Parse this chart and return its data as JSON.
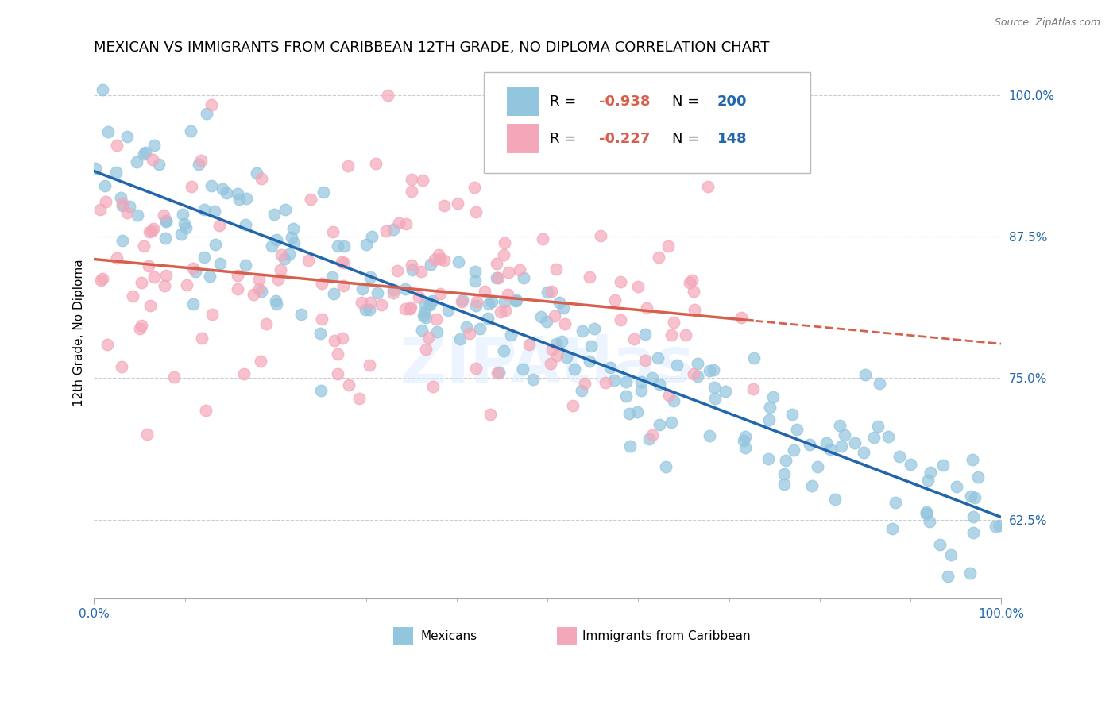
{
  "title": "MEXICAN VS IMMIGRANTS FROM CARIBBEAN 12TH GRADE, NO DIPLOMA CORRELATION CHART",
  "source": "Source: ZipAtlas.com",
  "ylabel": "12th Grade, No Diploma",
  "ytick_labels": [
    "100.0%",
    "87.5%",
    "75.0%",
    "62.5%"
  ],
  "ytick_values": [
    1.0,
    0.875,
    0.75,
    0.625
  ],
  "xlim": [
    0.0,
    1.0
  ],
  "ylim": [
    0.555,
    1.025
  ],
  "mexicans_color": "#92c5de",
  "caribbean_color": "#f4a7b9",
  "mexicans_line_color": "#2166ac",
  "caribbean_line_color": "#d6604d",
  "N_mexican": 200,
  "N_caribbean": 148,
  "R_mexican": -0.938,
  "R_caribbean": -0.227,
  "title_fontsize": 13,
  "axis_fontsize": 11,
  "tick_fontsize": 11,
  "legend_r_color": "#d6604d",
  "legend_n_color": "#2166ac"
}
